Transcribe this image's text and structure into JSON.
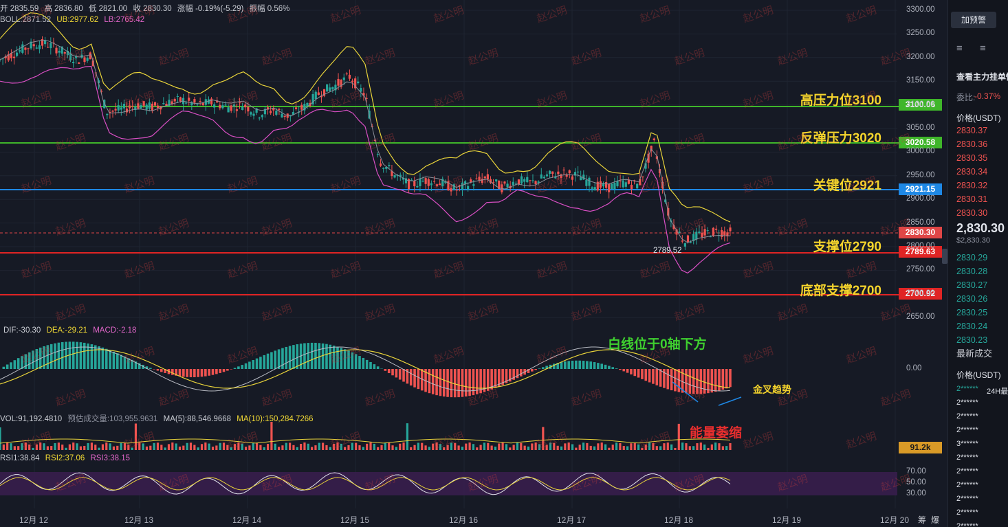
{
  "price_info": {
    "open": "开 2835.59",
    "high": "高 2836.80",
    "low": "低 2821.00",
    "close": "收 2830.30",
    "change": "涨幅 -0.19%(-5.29)",
    "amp": "振幅 0.56%"
  },
  "boll_info": {
    "mid": "BOLL:2871.52",
    "ub": "UB:2977.62",
    "lb": "LB:2765.42"
  },
  "macd_info": {
    "dif": "DIF:-30.30",
    "dea": "DEA:-29.21",
    "macd": "MACD:-2.18"
  },
  "vol_info": {
    "vol": "VOL:91,192.4810",
    "est": "预估成交量:103,955.9631",
    "ma5": "MA(5):88,546.9668",
    "ma10": "MA(10):150,284.7266"
  },
  "rsi_info": {
    "rsi1": "RSI1:38.84",
    "rsi2": "RSI2:37.06",
    "rsi3": "RSI3:38.15"
  },
  "levels": [
    {
      "label": "高压力位3100",
      "tag": "3100.06",
      "color": "#3fb62a"
    },
    {
      "label": "反弹压力3020",
      "tag": "3020.58",
      "color": "#3fb62a"
    },
    {
      "label": "关键位2921",
      "tag": "2921.15",
      "color": "#1e88e5"
    },
    {
      "label": "支撑位2790",
      "tag": "2789.63",
      "color": "#e02424"
    },
    {
      "label": "底部支撑2700",
      "tag": "2700.92",
      "color": "#e02424"
    }
  ],
  "current_price_tag": "2830.30",
  "low_marker": "2789.52",
  "price_axis": [
    "3300.00",
    "3250.00",
    "3200.00",
    "3150.00",
    "3100.00",
    "3050.00",
    "3000.00",
    "2950.00",
    "2900.00",
    "2850.00",
    "2800.00",
    "2750.00",
    "2700.00",
    "2650.00"
  ],
  "macd_zero": "0.00",
  "vol_tag": "91.2k",
  "rsi_axis": [
    "70.00",
    "50.00",
    "30.00"
  ],
  "dates": [
    "12月 12",
    "12月 13",
    "12月 14",
    "12月 15",
    "12月 16",
    "12月 17",
    "12月 18",
    "12月 19",
    "12月 20"
  ],
  "annotations": {
    "macd_note": "白线位于0轴下方",
    "cross_note": "金叉趋势",
    "vol_note": "能量萎缩"
  },
  "watermark": "赵公明",
  "bottom_icons": [
    "筹",
    "爆"
  ],
  "right_panel": {
    "alert_button": "加预警",
    "view_orders": "查看主力挂单情",
    "ratio_label": "委比:",
    "ratio_value": "-0.37%",
    "price_header": "价格(USDT)",
    "asks": [
      "2830.37",
      "2830.36",
      "2830.35",
      "2830.34",
      "2830.32",
      "2830.31",
      "2830.30"
    ],
    "last_price": "2,830.30",
    "last_usd": "$2,830.30",
    "bids": [
      "2830.29",
      "2830.28",
      "2830.27",
      "2830.26",
      "2830.25",
      "2830.24",
      "2830.23"
    ],
    "trades_title": "最新成交",
    "trades_header": "价格(USDT)",
    "trades_badge": "24H最",
    "trades": [
      "2******",
      "2******",
      "2******",
      "2******",
      "3******",
      "2******",
      "2******",
      "2******",
      "2******",
      "2******",
      "2******"
    ]
  },
  "colors": {
    "up": "#26a69a",
    "down": "#ef5350",
    "boll_upper": "#e8d33a",
    "boll_lower": "#d94fc4",
    "boll_mid": "#8c8f99"
  },
  "chart_data": {
    "type": "candlestick",
    "x": [
      "12月 12",
      "12月 13",
      "12月 14",
      "12月 15",
      "12月 16",
      "12月 17",
      "12月 18"
    ],
    "close_path": [
      3195,
      3210,
      3225,
      3230,
      3215,
      3195,
      3205,
      3085,
      3090,
      3100,
      3095,
      3105,
      3110,
      3100,
      3105,
      3095,
      3100,
      3080,
      3090,
      3075,
      3095,
      3125,
      3140,
      3160,
      3120,
      2980,
      2950,
      2930,
      2940,
      2935,
      2920,
      2935,
      2945,
      2925,
      2940,
      2935,
      2950,
      2955,
      2950,
      2930,
      2925,
      2935,
      2930,
      3020,
      2860,
      2810,
      2825,
      2832,
      2830
    ],
    "price_ylim": [
      2650,
      3300
    ],
    "macd_zero": 0,
    "rsi_levels": [
      70,
      50,
      30
    ],
    "last_price": 2830.3
  }
}
